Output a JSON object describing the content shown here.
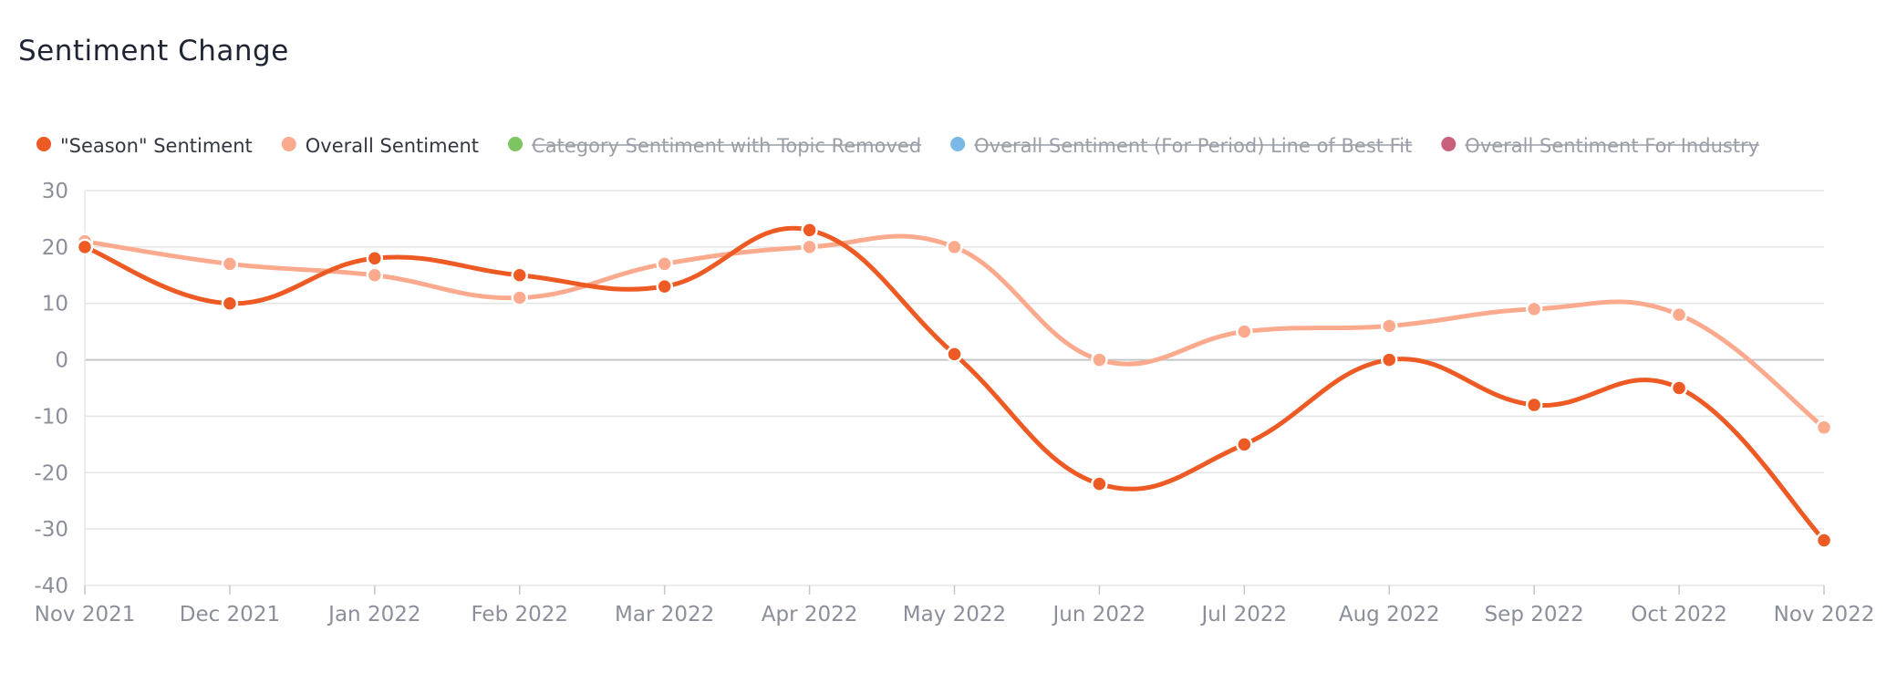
{
  "header": {
    "title": "Sentiment Change"
  },
  "chart_data": {
    "type": "line",
    "title": "Sentiment Change",
    "xlabel": "",
    "ylabel": "",
    "ylim": [
      -40,
      30
    ],
    "yticks": [
      30,
      20,
      10,
      0,
      -10,
      -20,
      -30,
      -40
    ],
    "yticks_labels": [
      "30",
      "20",
      "10",
      "0",
      "-10",
      "-20",
      "-30",
      "-40"
    ],
    "grid": true,
    "legend_position": "top-left",
    "categories": [
      "Nov 2021",
      "Dec 2021",
      "Jan 2022",
      "Feb 2022",
      "Mar 2022",
      "Apr 2022",
      "May 2022",
      "Jun 2022",
      "Jul 2022",
      "Aug 2022",
      "Sep 2022",
      "Oct 2022",
      "Nov 2022"
    ],
    "legend": [
      {
        "name": "\"Season\" Sentiment",
        "color": "#ee5a24",
        "hidden": false
      },
      {
        "name": "Overall Sentiment",
        "color": "#fcaa8e",
        "hidden": false
      },
      {
        "name": "Category Sentiment with Topic Removed",
        "color": "#7cc560",
        "hidden": true
      },
      {
        "name": "Overall Sentiment (For Period) Line of Best Fit",
        "color": "#7ab8e8",
        "hidden": true
      },
      {
        "name": "Overall Sentiment For Industry",
        "color": "#c8607c",
        "hidden": true
      }
    ],
    "series": [
      {
        "name": "\"Season\" Sentiment",
        "color": "#ee5a24",
        "values": [
          20,
          10,
          18,
          15,
          13,
          23,
          1,
          -22,
          -15,
          0,
          -8,
          -5,
          -32
        ]
      },
      {
        "name": "Overall Sentiment",
        "color": "#fcaa8e",
        "values": [
          21,
          17,
          15,
          11,
          17,
          20,
          20,
          0,
          5,
          6,
          9,
          8,
          -12
        ]
      }
    ]
  }
}
